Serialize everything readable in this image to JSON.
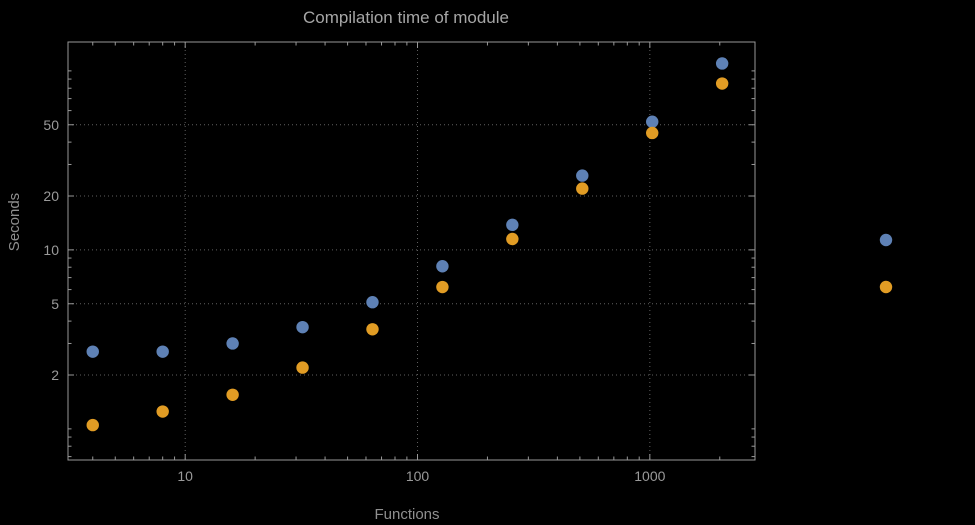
{
  "chart_data": {
    "type": "scatter",
    "title": "Compilation time of module",
    "xlabel": "Functions",
    "ylabel": "Seconds",
    "x_scale": "log",
    "y_scale": "log",
    "xlim": [
      3.13,
      2836
    ],
    "ylim": [
      0.67,
      145
    ],
    "grid": true,
    "x_ticks": [
      {
        "value": 10,
        "label": "10"
      },
      {
        "value": 100,
        "label": "100"
      },
      {
        "value": 1000,
        "label": "1000"
      }
    ],
    "y_ticks": [
      {
        "value": 2,
        "label": "2"
      },
      {
        "value": 5,
        "label": "5"
      },
      {
        "value": 10,
        "label": "10"
      },
      {
        "value": 20,
        "label": "20"
      },
      {
        "value": 50,
        "label": "50"
      }
    ],
    "series": [
      {
        "name": "series-1",
        "color": "#5e81b5",
        "x": [
          4,
          8,
          16,
          32,
          64,
          128,
          256,
          512,
          1024,
          2048
        ],
        "y": [
          2.7,
          2.7,
          3.0,
          3.7,
          5.1,
          8.1,
          13.8,
          26,
          52,
          110
        ]
      },
      {
        "name": "series-2",
        "color": "#e19c24",
        "x": [
          4,
          8,
          16,
          32,
          64,
          128,
          256,
          512,
          1024,
          2048
        ],
        "y": [
          1.05,
          1.25,
          1.55,
          2.2,
          3.6,
          6.2,
          11.5,
          22,
          45,
          85
        ]
      }
    ],
    "legend": {
      "position": "right-outside",
      "entries": [
        {
          "series": "series-1",
          "color": "#5e81b5",
          "label": ""
        },
        {
          "series": "series-2",
          "color": "#e19c24",
          "label": ""
        }
      ]
    }
  },
  "colors": {
    "background": "#000000",
    "frame": "#999999",
    "grid": "#606060",
    "title_text": "#a6a6a6",
    "tick_text": "#9a9a9a",
    "axis_label_text": "#8f8f8f",
    "series_1": "#5e81b5",
    "series_2": "#e19c24"
  }
}
